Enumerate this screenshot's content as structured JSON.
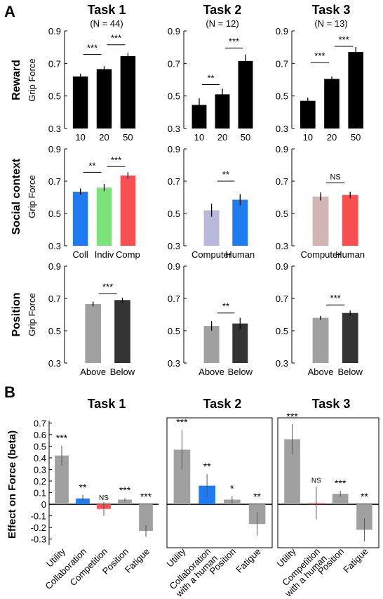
{
  "panel_a": {
    "label": "A",
    "tasks": [
      {
        "title": "Task 1",
        "n": "(N = 44)"
      },
      {
        "title": "Task 2",
        "n": "(N = 12)"
      },
      {
        "title": "Task 3",
        "n": "(N = 13)"
      }
    ],
    "rows": [
      "Reward",
      "Social context",
      "Position"
    ],
    "y_label": "Grip Force"
  },
  "panel_b": {
    "label": "B",
    "tasks": [
      "Task 1",
      "Task 2",
      "Task 3"
    ],
    "y_label": "Effect on Force (beta)"
  },
  "colors": {
    "black": "#000000",
    "blue": "#1f7bf0",
    "green": "#7ce27c",
    "red": "#f85050",
    "lavender": "#b8b8d8",
    "mauve": "#d2b4b4",
    "gray": "#a0a0a0",
    "dark": "#333333"
  },
  "chart_data": [
    {
      "id": "A-reward-task1",
      "type": "bar",
      "categories": [
        "10",
        "20",
        "50"
      ],
      "values": [
        0.62,
        0.665,
        0.745
      ],
      "errors": [
        0.018,
        0.018,
        0.02
      ],
      "colors": [
        "black",
        "black",
        "black"
      ],
      "ylim": [
        0.3,
        0.9
      ],
      "yticks": [
        0.3,
        0.5,
        0.7,
        0.9
      ],
      "ylabel": "Grip Force",
      "sig": [
        {
          "a": 0,
          "b": 1,
          "y": 0.755,
          "label": "***"
        },
        {
          "a": 1,
          "b": 2,
          "y": 0.815,
          "label": "***"
        }
      ]
    },
    {
      "id": "A-reward-task2",
      "type": "bar",
      "categories": [
        "10",
        "20",
        "50"
      ],
      "values": [
        0.445,
        0.51,
        0.715
      ],
      "errors": [
        0.04,
        0.035,
        0.04
      ],
      "colors": [
        "black",
        "black",
        "black"
      ],
      "ylim": [
        0.3,
        0.9
      ],
      "yticks": [
        0.3,
        0.5,
        0.7,
        0.9
      ],
      "sig": [
        {
          "a": 0,
          "b": 1,
          "y": 0.57,
          "label": "**"
        },
        {
          "a": 1,
          "b": 2,
          "y": 0.795,
          "label": "***"
        }
      ]
    },
    {
      "id": "A-reward-task3",
      "type": "bar",
      "categories": [
        "10",
        "20",
        "50"
      ],
      "values": [
        0.47,
        0.605,
        0.77
      ],
      "errors": [
        0.02,
        0.015,
        0.03
      ],
      "colors": [
        "black",
        "black",
        "black"
      ],
      "ylim": [
        0.3,
        0.9
      ],
      "yticks": [
        0.3,
        0.5,
        0.7,
        0.9
      ],
      "sig": [
        {
          "a": 0,
          "b": 1,
          "y": 0.705,
          "label": "***"
        },
        {
          "a": 1,
          "b": 2,
          "y": 0.805,
          "label": "***"
        }
      ]
    },
    {
      "id": "A-social-task1",
      "type": "bar",
      "categories": [
        "Coll",
        "Indiv",
        "Comp"
      ],
      "values": [
        0.635,
        0.66,
        0.735
      ],
      "errors": [
        0.02,
        0.022,
        0.02
      ],
      "colors": [
        "blue",
        "green",
        "red"
      ],
      "ylim": [
        0.3,
        0.9
      ],
      "yticks": [
        0.3,
        0.5,
        0.7,
        0.9
      ],
      "ylabel": "Grip Force",
      "sig": [
        {
          "a": 0,
          "b": 1,
          "y": 0.755,
          "label": "**"
        },
        {
          "a": 1,
          "b": 2,
          "y": 0.79,
          "label": "***"
        }
      ]
    },
    {
      "id": "A-social-task2",
      "type": "bar",
      "categories": [
        "Computer",
        "Human"
      ],
      "values": [
        0.52,
        0.585
      ],
      "errors": [
        0.04,
        0.035
      ],
      "colors": [
        "lavender",
        "blue"
      ],
      "ylim": [
        0.3,
        0.9
      ],
      "yticks": [
        0.3,
        0.5,
        0.7,
        0.9
      ],
      "sig": [
        {
          "a": 0,
          "b": 1,
          "y": 0.7,
          "label": "**"
        }
      ]
    },
    {
      "id": "A-social-task3",
      "type": "bar",
      "categories": [
        "Computer",
        "Human"
      ],
      "values": [
        0.605,
        0.615
      ],
      "errors": [
        0.025,
        0.02
      ],
      "colors": [
        "mauve",
        "red"
      ],
      "ylim": [
        0.3,
        0.9
      ],
      "yticks": [
        0.3,
        0.5,
        0.7,
        0.9
      ],
      "sig": [
        {
          "a": 0,
          "b": 1,
          "y": 0.69,
          "label": "NS"
        }
      ]
    },
    {
      "id": "A-position-task1",
      "type": "bar",
      "categories": [
        "Above",
        "Below"
      ],
      "values": [
        0.665,
        0.69
      ],
      "errors": [
        0.015,
        0.015
      ],
      "colors": [
        "gray",
        "dark"
      ],
      "ylim": [
        0.3,
        0.9
      ],
      "yticks": [
        0.3,
        0.5,
        0.7,
        0.9
      ],
      "ylabel": "Grip Force",
      "sig": [
        {
          "a": 0,
          "b": 1,
          "y": 0.73,
          "label": "***"
        }
      ]
    },
    {
      "id": "A-position-task2",
      "type": "bar",
      "categories": [
        "Above",
        "Below"
      ],
      "values": [
        0.53,
        0.545
      ],
      "errors": [
        0.03,
        0.035
      ],
      "colors": [
        "gray",
        "dark"
      ],
      "ylim": [
        0.3,
        0.9
      ],
      "yticks": [
        0.3,
        0.5,
        0.7,
        0.9
      ],
      "sig": [
        {
          "a": 0,
          "b": 1,
          "y": 0.61,
          "label": "**"
        }
      ]
    },
    {
      "id": "A-position-task3",
      "type": "bar",
      "categories": [
        "Above",
        "Below"
      ],
      "values": [
        0.58,
        0.61
      ],
      "errors": [
        0.012,
        0.015
      ],
      "colors": [
        "gray",
        "dark"
      ],
      "ylim": [
        0.3,
        0.9
      ],
      "yticks": [
        0.3,
        0.5,
        0.7,
        0.9
      ],
      "sig": [
        {
          "a": 0,
          "b": 1,
          "y": 0.66,
          "label": "***"
        }
      ]
    },
    {
      "id": "B-task1",
      "type": "bar",
      "categories": [
        "Utility",
        "Collaboration",
        "Competition",
        "Position",
        "Fatigue"
      ],
      "values": [
        0.42,
        0.05,
        -0.04,
        0.04,
        -0.23
      ],
      "errors": [
        0.085,
        0.03,
        0.06,
        0.015,
        0.05
      ],
      "colors": [
        "gray",
        "blue",
        "red",
        "gray",
        "gray"
      ],
      "labels": [
        "***",
        "**",
        "NS",
        "***",
        "***"
      ],
      "ylim": [
        -0.35,
        0.72
      ],
      "yticks": [
        -0.3,
        -0.2,
        -0.1,
        0,
        0.1,
        0.2,
        0.3,
        0.4,
        0.5,
        0.6,
        0.7
      ],
      "ylabel": "Effect on Force (beta)"
    },
    {
      "id": "B-task2",
      "type": "bar",
      "categories": [
        "Utility",
        "Collaboration with a human",
        "Position",
        "Fatigue"
      ],
      "values": [
        0.47,
        0.16,
        0.04,
        -0.17
      ],
      "errors": [
        0.17,
        0.1,
        0.03,
        0.1
      ],
      "colors": [
        "gray",
        "blue",
        "gray",
        "gray"
      ],
      "labels": [
        "***",
        "**",
        "*",
        "**"
      ],
      "ylim": [
        -0.35,
        0.72
      ],
      "yticks": [
        -0.3,
        -0.2,
        -0.1,
        0,
        0.1,
        0.2,
        0.3,
        0.4,
        0.5,
        0.6,
        0.7
      ]
    },
    {
      "id": "B-task3",
      "type": "bar",
      "categories": [
        "Utility",
        "Competition with a human",
        "Position",
        "Fatigue"
      ],
      "values": [
        0.56,
        0.01,
        0.09,
        -0.22
      ],
      "errors": [
        0.13,
        0.14,
        0.025,
        0.1
      ],
      "colors": [
        "gray",
        "red",
        "gray",
        "gray"
      ],
      "labels": [
        "***",
        "NS",
        "***",
        "**"
      ],
      "ylim": [
        -0.35,
        0.72
      ],
      "yticks": [
        -0.3,
        -0.2,
        -0.1,
        0,
        0.1,
        0.2,
        0.3,
        0.4,
        0.5,
        0.6,
        0.7
      ]
    }
  ]
}
